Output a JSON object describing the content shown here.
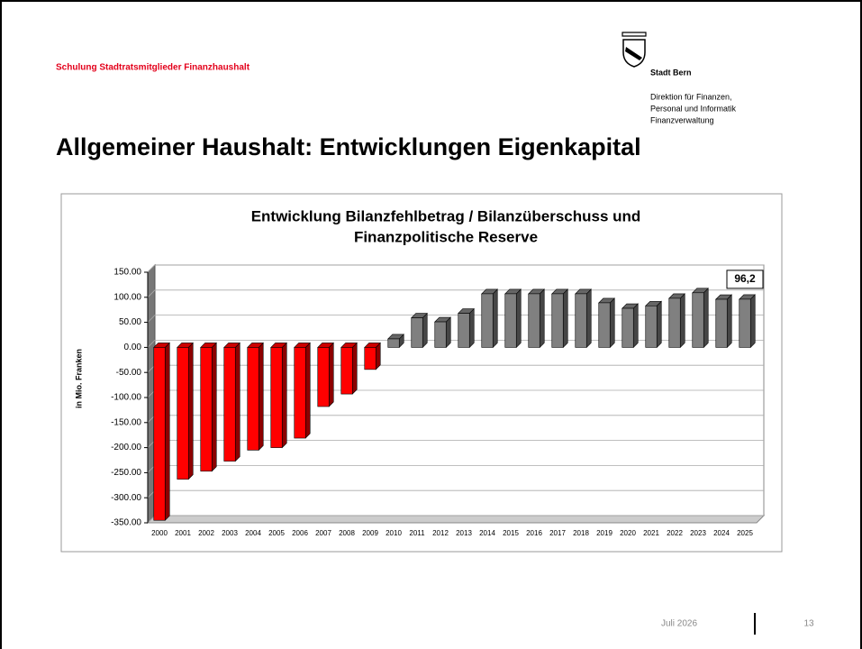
{
  "header": {
    "course": "Schulung Stadtratsmitglieder Finanzhaushalt",
    "org": "Stadt Bern",
    "department": [
      "Direktion für Finanzen,",
      "Personal und Informatik",
      "Finanzverwaltung"
    ],
    "title": "Allgemeiner Haushalt: Entwicklungen Eigenkapital"
  },
  "footer": {
    "date": "Juli 2026",
    "page": "13"
  },
  "chart_data": {
    "type": "bar",
    "title": [
      "Entwicklung Bilanzfehlbetrag / Bilanzüberschuss und",
      "Finanzpolitische Reserve"
    ],
    "y_label": "in Mio. Franken",
    "categories": [
      "2000",
      "2001",
      "2002",
      "2003",
      "2004",
      "2005",
      "2006",
      "2007",
      "2008",
      "2009",
      "2010",
      "2011",
      "2012",
      "2013",
      "2014",
      "2015",
      "2016",
      "2017",
      "2018",
      "2019",
      "2020",
      "2021",
      "2022",
      "2023",
      "2024",
      "2025"
    ],
    "values": [
      -345,
      -263,
      -247,
      -227,
      -205,
      -200,
      -181,
      -118,
      -93,
      -44,
      17,
      59,
      51,
      68,
      107,
      107,
      107,
      107,
      107,
      89,
      78,
      83,
      98,
      109,
      96,
      96.2
    ],
    "value_labels": [
      null,
      null,
      null,
      null,
      null,
      null,
      null,
      null,
      null,
      null,
      null,
      null,
      null,
      null,
      null,
      null,
      null,
      null,
      null,
      null,
      null,
      null,
      null,
      null,
      null,
      "96,2"
    ],
    "colors": [
      "#ff0000",
      "#ff0000",
      "#ff0000",
      "#ff0000",
      "#ff0000",
      "#ff0000",
      "#ff0000",
      "#ff0000",
      "#ff0000",
      "#ff0000",
      "#808080",
      "#808080",
      "#808080",
      "#808080",
      "#808080",
      "#808080",
      "#808080",
      "#808080",
      "#808080",
      "#808080",
      "#808080",
      "#808080",
      "#808080",
      "#808080",
      "#808080",
      "#808080"
    ],
    "ylim": [
      -350,
      150
    ],
    "yticks": [
      {
        "value": -350,
        "label": "-350.00"
      },
      {
        "value": -300,
        "label": "-300.00"
      },
      {
        "value": -250,
        "label": "-250.00"
      },
      {
        "value": -200,
        "label": "-200.00"
      },
      {
        "value": -150,
        "label": "-150.00"
      },
      {
        "value": -100,
        "label": "-100.00"
      },
      {
        "value": -50,
        "label": "-50.00"
      },
      {
        "value": 0,
        "label": "0.00"
      },
      {
        "value": 50,
        "label": "50.00"
      },
      {
        "value": 100,
        "label": "100.00"
      },
      {
        "value": 150,
        "label": "150.00"
      }
    ],
    "grid": true
  }
}
